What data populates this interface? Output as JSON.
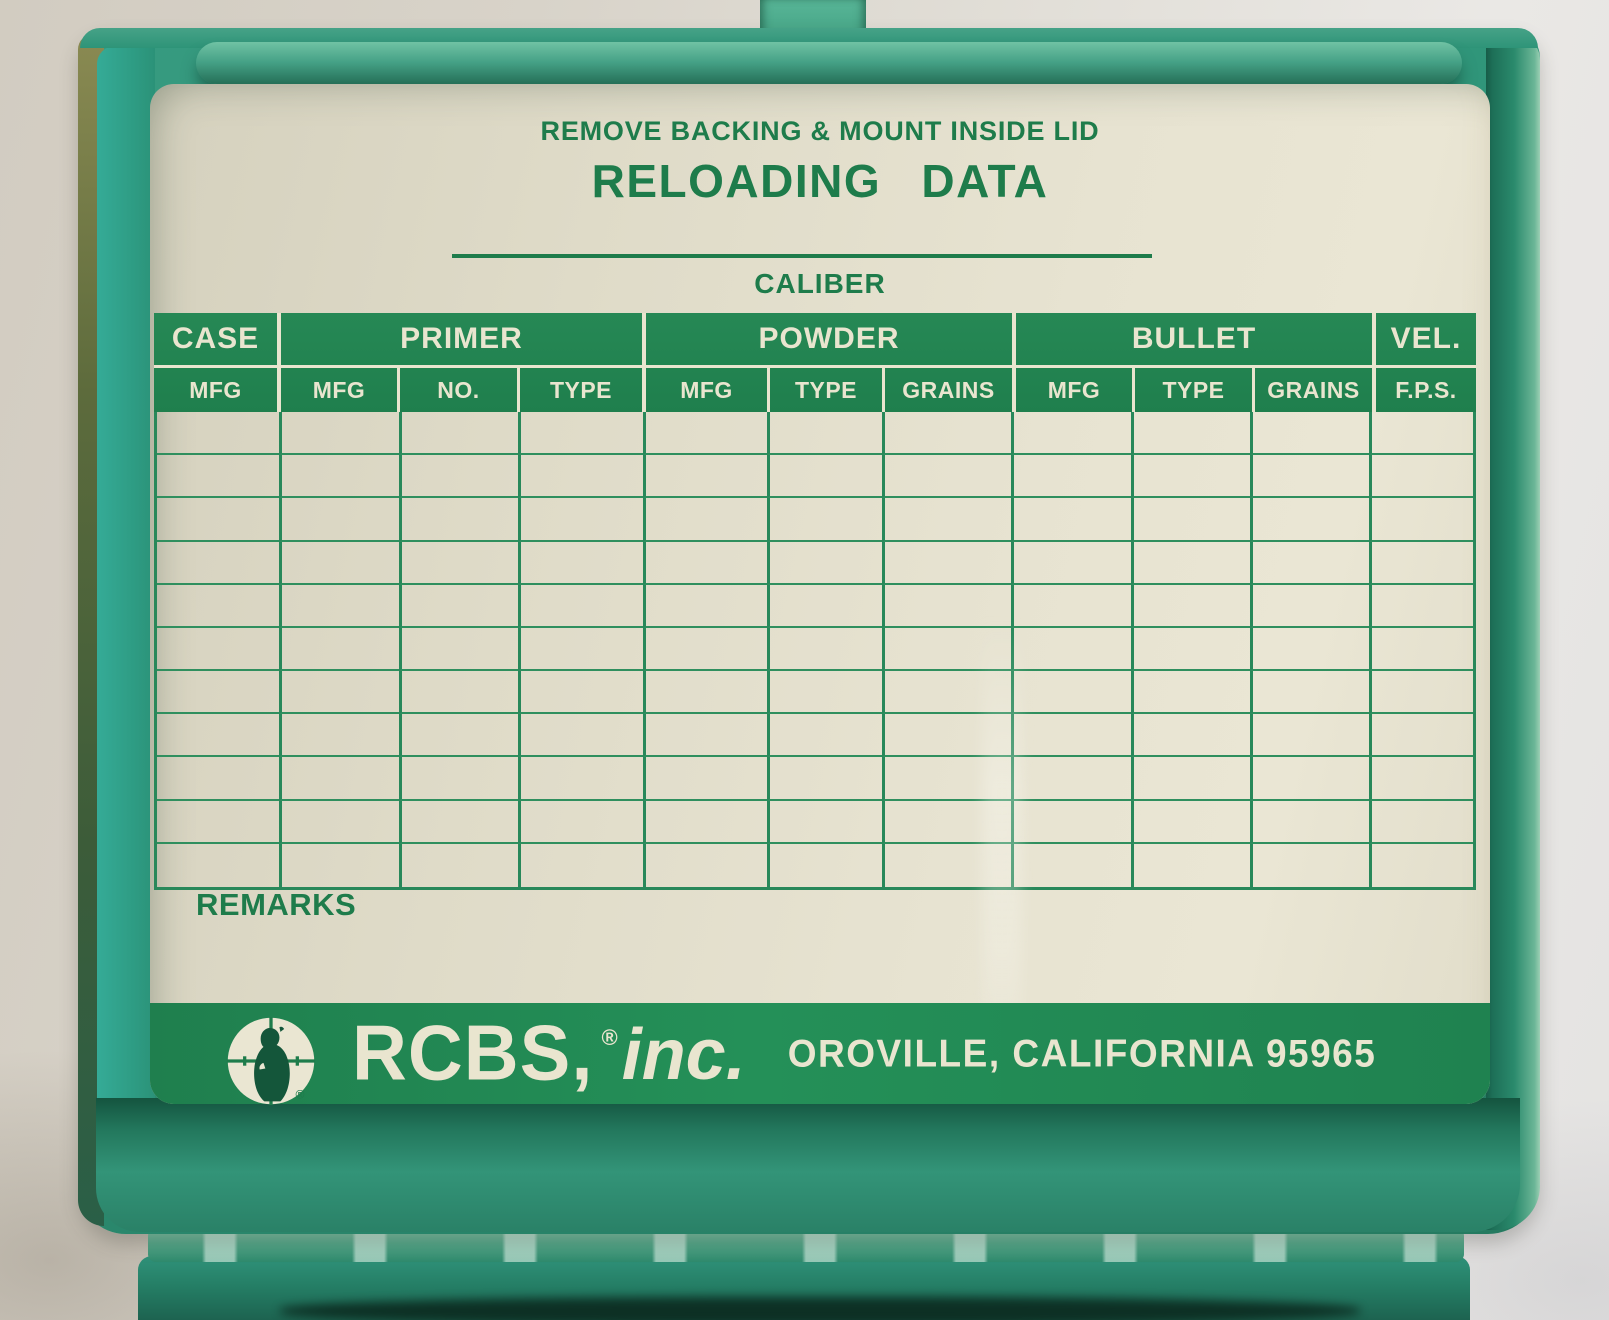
{
  "card": {
    "instruction": "REMOVE BACKING & MOUNT INSIDE LID",
    "title": "RELOADING DATA",
    "caliber_label": "CALIBER",
    "remarks_label": "REMARKS",
    "table": {
      "groups": [
        "CASE",
        "PRIMER",
        "POWDER",
        "BULLET",
        "VEL."
      ],
      "columns": [
        "MFG",
        "MFG",
        "NO.",
        "TYPE",
        "MFG",
        "TYPE",
        "GRAINS",
        "MFG",
        "TYPE",
        "GRAINS",
        "F.P.S."
      ],
      "body_rows": 11
    },
    "footer": {
      "logo_icon": "rcbs-rockchuck-crosshair-logo",
      "brand": "RCBS,",
      "registered_mark": "®",
      "brand_suffix": "inc.",
      "address": "OROVILLE, CALIFORNIA 95965"
    },
    "colors": {
      "print_green": "#1e7c4b",
      "band_green": "#1f7f4d",
      "grid_green": "#28885a",
      "grid_line": "#2f8f5e",
      "cream": "#e9e5cf",
      "plastic_teal": "#2e9478"
    }
  }
}
